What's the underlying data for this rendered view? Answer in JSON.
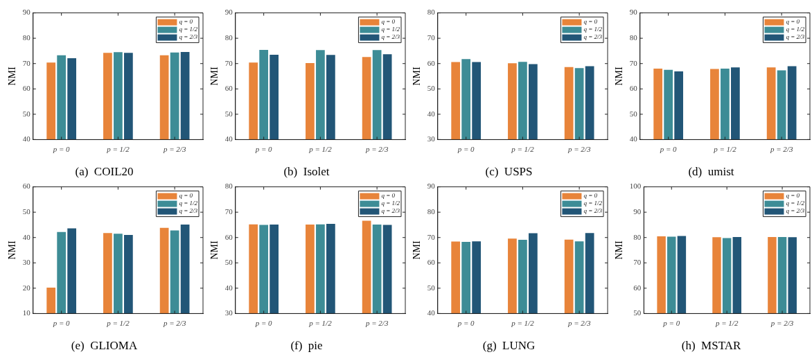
{
  "chart_data": [
    {
      "type": "bar",
      "title": "(a)  COIL20",
      "ylabel": "NMI",
      "categories": [
        "p = 0",
        "p = 1/2",
        "p = 2/3"
      ],
      "ylim": [
        40,
        90
      ],
      "yticks": [
        40,
        50,
        60,
        70,
        80,
        90
      ],
      "grid": false,
      "legend": "top right",
      "series": [
        {
          "name": "q = 0",
          "color": "#e8843a",
          "values": [
            70.4,
            74.2,
            73.3
          ]
        },
        {
          "name": "q = 1/2",
          "color": "#3d8c96",
          "values": [
            73.3,
            74.5,
            74.4
          ]
        },
        {
          "name": "q = 2/3",
          "color": "#225677",
          "values": [
            72.1,
            74.2,
            74.6
          ]
        }
      ]
    },
    {
      "type": "bar",
      "title": "(b)  Isolet",
      "ylabel": "NMI",
      "categories": [
        "p = 0",
        "p = 1/2",
        "p = 2/3"
      ],
      "ylim": [
        40,
        90
      ],
      "yticks": [
        40,
        50,
        60,
        70,
        80,
        90
      ],
      "grid": false,
      "legend": "top right",
      "series": [
        {
          "name": "q = 0",
          "color": "#e8843a",
          "values": [
            70.4,
            70.2,
            72.6
          ]
        },
        {
          "name": "q = 1/2",
          "color": "#3d8c96",
          "values": [
            75.4,
            75.3,
            75.3
          ]
        },
        {
          "name": "q = 2/3",
          "color": "#225677",
          "values": [
            73.5,
            73.4,
            73.7
          ]
        }
      ]
    },
    {
      "type": "bar",
      "title": "(c)  USPS",
      "ylabel": "NMI",
      "categories": [
        "p = 0",
        "p = 1/2",
        "p = 2/3"
      ],
      "ylim": [
        30,
        80
      ],
      "yticks": [
        30,
        40,
        50,
        60,
        70,
        80
      ],
      "grid": false,
      "legend": "top right",
      "series": [
        {
          "name": "q = 0",
          "color": "#e8843a",
          "values": [
            60.6,
            60.1,
            58.6
          ]
        },
        {
          "name": "q = 1/2",
          "color": "#3d8c96",
          "values": [
            61.8,
            60.7,
            58.2
          ]
        },
        {
          "name": "q = 2/3",
          "color": "#225677",
          "values": [
            60.6,
            59.8,
            59.0
          ]
        }
      ]
    },
    {
      "type": "bar",
      "title": "(d)  umist",
      "ylabel": "NMI",
      "categories": [
        "p = 0",
        "p = 1/2",
        "p = 2/3"
      ],
      "ylim": [
        40,
        90
      ],
      "yticks": [
        40,
        50,
        60,
        70,
        80,
        90
      ],
      "grid": false,
      "legend": "top right",
      "series": [
        {
          "name": "q = 0",
          "color": "#e8843a",
          "values": [
            68.0,
            67.9,
            68.5
          ]
        },
        {
          "name": "q = 1/2",
          "color": "#3d8c96",
          "values": [
            67.5,
            68.0,
            67.3
          ]
        },
        {
          "name": "q = 2/3",
          "color": "#225677",
          "values": [
            66.9,
            68.5,
            69.0
          ]
        }
      ]
    },
    {
      "type": "bar",
      "title": "(e)  GLIOMA",
      "ylabel": "NMI",
      "categories": [
        "p = 0",
        "p = 1/2",
        "p = 2/3"
      ],
      "ylim": [
        10,
        60
      ],
      "yticks": [
        10,
        20,
        30,
        40,
        50,
        60
      ],
      "grid": false,
      "legend": "top right",
      "series": [
        {
          "name": "q = 0",
          "color": "#e8843a",
          "values": [
            20.2,
            41.8,
            43.8
          ]
        },
        {
          "name": "q = 1/2",
          "color": "#3d8c96",
          "values": [
            42.2,
            41.5,
            42.8
          ]
        },
        {
          "name": "q = 2/3",
          "color": "#225677",
          "values": [
            43.6,
            41.0,
            45.1
          ]
        }
      ]
    },
    {
      "type": "bar",
      "title": "(f)  pie",
      "ylabel": "NMI",
      "categories": [
        "p = 0",
        "p = 1/2",
        "p = 2/3"
      ],
      "ylim": [
        30,
        80
      ],
      "yticks": [
        30,
        40,
        50,
        60,
        70,
        80
      ],
      "grid": false,
      "legend": "top right",
      "series": [
        {
          "name": "q = 0",
          "color": "#e8843a",
          "values": [
            65.2,
            65.1,
            66.6
          ]
        },
        {
          "name": "q = 1/2",
          "color": "#3d8c96",
          "values": [
            65.0,
            65.2,
            65.1
          ]
        },
        {
          "name": "q = 2/3",
          "color": "#225677",
          "values": [
            65.1,
            65.4,
            65.0
          ]
        }
      ]
    },
    {
      "type": "bar",
      "title": "(g)  LUNG",
      "ylabel": "NMI",
      "categories": [
        "p = 0",
        "p = 1/2",
        "p = 2/3"
      ],
      "ylim": [
        40,
        90
      ],
      "yticks": [
        40,
        50,
        60,
        70,
        80,
        90
      ],
      "grid": false,
      "legend": "top right",
      "series": [
        {
          "name": "q = 0",
          "color": "#e8843a",
          "values": [
            68.4,
            69.6,
            69.2
          ]
        },
        {
          "name": "q = 1/2",
          "color": "#3d8c96",
          "values": [
            68.3,
            69.1,
            68.5
          ]
        },
        {
          "name": "q = 2/3",
          "color": "#225677",
          "values": [
            68.5,
            71.7,
            71.8
          ]
        }
      ]
    },
    {
      "type": "bar",
      "title": "(h)  MSTAR",
      "ylabel": "NMI",
      "categories": [
        "p = 0",
        "p = 1/2",
        "p = 2/3"
      ],
      "ylim": [
        50,
        100
      ],
      "yticks": [
        50,
        60,
        70,
        80,
        90,
        100
      ],
      "grid": false,
      "legend": "top right",
      "series": [
        {
          "name": "q = 0",
          "color": "#e8843a",
          "values": [
            80.5,
            80.1,
            80.2
          ]
        },
        {
          "name": "q = 1/2",
          "color": "#3d8c96",
          "values": [
            80.3,
            79.8,
            80.2
          ]
        },
        {
          "name": "q = 2/3",
          "color": "#225677",
          "values": [
            80.6,
            80.2,
            80.1
          ]
        }
      ]
    }
  ]
}
